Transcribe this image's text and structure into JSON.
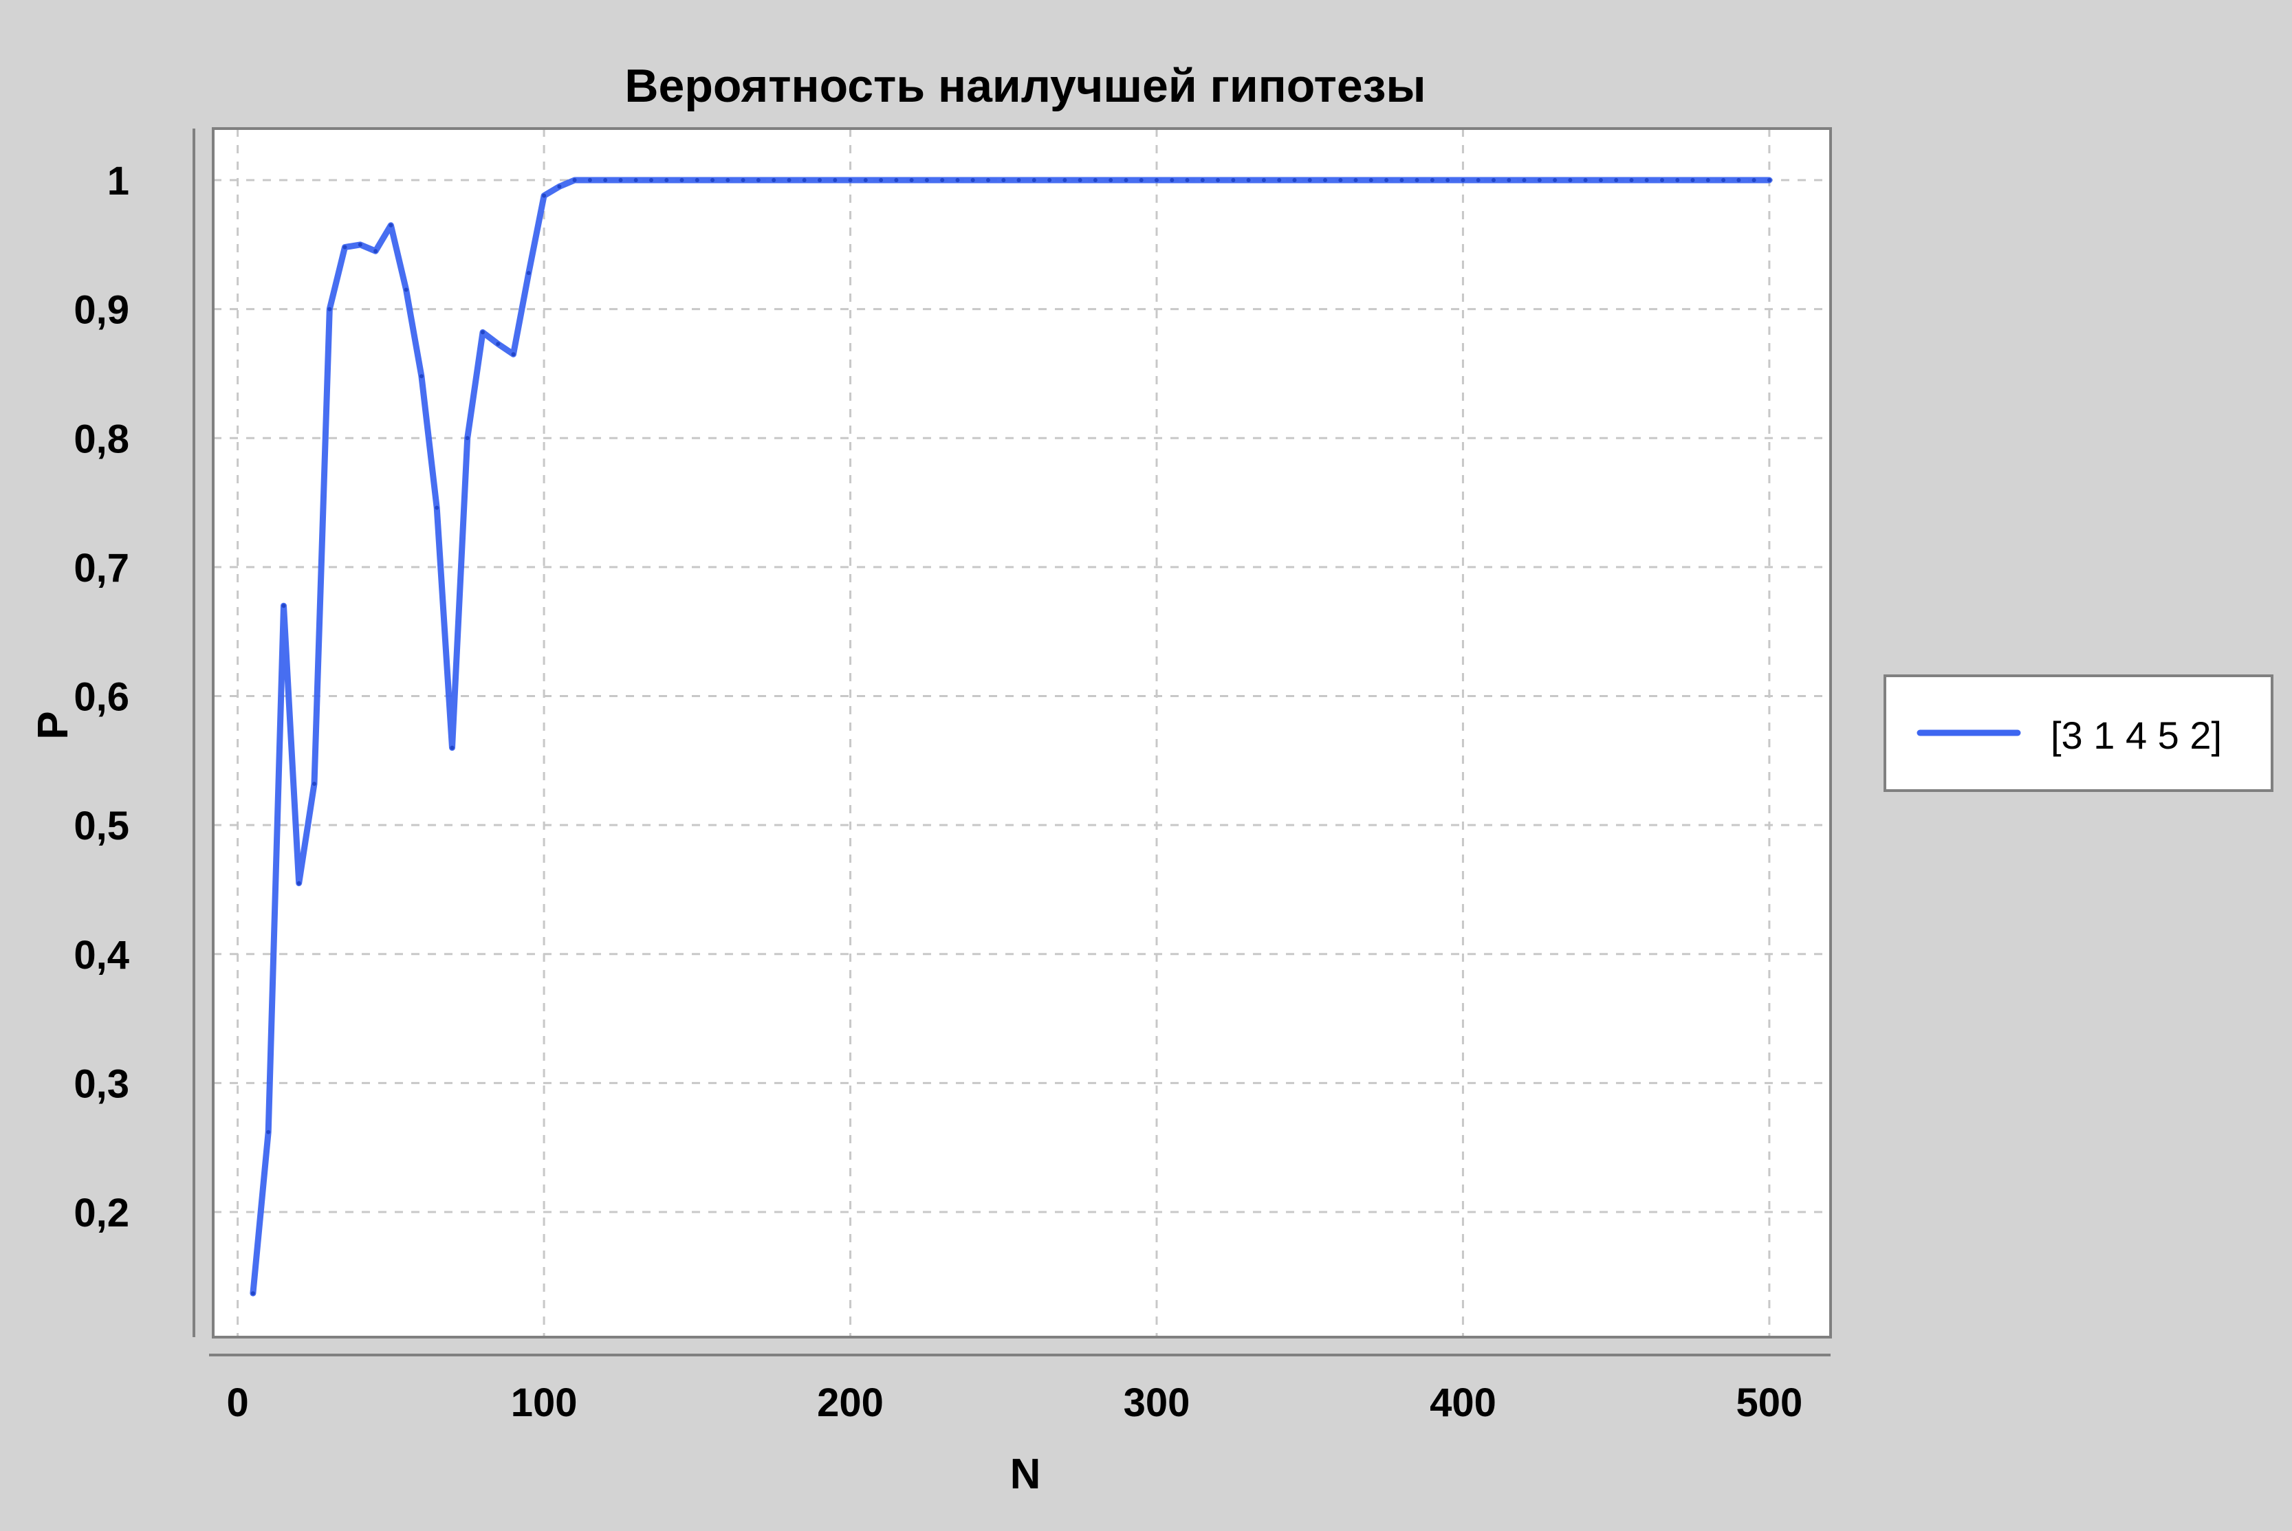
{
  "chart_data": {
    "type": "line",
    "title": "Вероятность наилучшей гипотезы",
    "xlabel": "N",
    "ylabel": "P",
    "xlim": [
      -8,
      520
    ],
    "ylim": [
      0.103,
      1.04
    ],
    "x_ticks": [
      {
        "value": 0,
        "label": "0"
      },
      {
        "value": 100,
        "label": "100"
      },
      {
        "value": 200,
        "label": "200"
      },
      {
        "value": 300,
        "label": "300"
      },
      {
        "value": 400,
        "label": "400"
      },
      {
        "value": 500,
        "label": "500"
      }
    ],
    "y_ticks": [
      {
        "value": 0.2,
        "label": "0,2"
      },
      {
        "value": 0.3,
        "label": "0,3"
      },
      {
        "value": 0.4,
        "label": "0,4"
      },
      {
        "value": 0.5,
        "label": "0,5"
      },
      {
        "value": 0.6,
        "label": "0,6"
      },
      {
        "value": 0.7,
        "label": "0,7"
      },
      {
        "value": 0.8,
        "label": "0,8"
      },
      {
        "value": 0.9,
        "label": "0,9"
      },
      {
        "value": 1.0,
        "label": "1"
      }
    ],
    "grid": true,
    "legend_position": "right",
    "series": [
      {
        "name": "[3 1 4 5 2]",
        "color": "#3d66f0",
        "x": [
          5,
          10,
          15,
          20,
          25,
          30,
          35,
          40,
          45,
          50,
          55,
          60,
          65,
          70,
          75,
          80,
          85,
          90,
          95,
          100,
          105,
          110,
          115,
          120,
          125,
          130,
          135,
          140,
          145,
          150,
          155,
          160,
          165,
          170,
          175,
          180,
          185,
          190,
          195,
          200,
          205,
          210,
          215,
          220,
          225,
          230,
          235,
          240,
          245,
          250,
          255,
          260,
          265,
          270,
          275,
          280,
          285,
          290,
          295,
          300,
          305,
          310,
          315,
          320,
          325,
          330,
          335,
          340,
          345,
          350,
          355,
          360,
          365,
          370,
          375,
          380,
          385,
          390,
          395,
          400,
          405,
          410,
          415,
          420,
          425,
          430,
          435,
          440,
          445,
          450,
          455,
          460,
          465,
          470,
          475,
          480,
          485,
          490,
          495,
          500
        ],
        "y": [
          0.137,
          0.262,
          0.67,
          0.455,
          0.532,
          0.9,
          0.948,
          0.95,
          0.945,
          0.965,
          0.915,
          0.848,
          0.746,
          0.56,
          0.8,
          0.882,
          0.873,
          0.865,
          0.928,
          0.988,
          0.995,
          1.0,
          1.0,
          1.0,
          1.0,
          1.0,
          1.0,
          1.0,
          1.0,
          1.0,
          1.0,
          1.0,
          1.0,
          1.0,
          1.0,
          1.0,
          1.0,
          1.0,
          1.0,
          1.0,
          1.0,
          1.0,
          1.0,
          1.0,
          1.0,
          1.0,
          1.0,
          1.0,
          1.0,
          1.0,
          1.0,
          1.0,
          1.0,
          1.0,
          1.0,
          1.0,
          1.0,
          1.0,
          1.0,
          1.0,
          1.0,
          1.0,
          1.0,
          1.0,
          1.0,
          1.0,
          1.0,
          1.0,
          1.0,
          1.0,
          1.0,
          1.0,
          1.0,
          1.0,
          1.0,
          1.0,
          1.0,
          1.0,
          1.0,
          1.0,
          1.0,
          1.0,
          1.0,
          1.0,
          1.0,
          1.0,
          1.0,
          1.0,
          1.0,
          1.0,
          1.0,
          1.0,
          1.0,
          1.0,
          1.0,
          1.0,
          1.0,
          1.0,
          1.0,
          1.0
        ]
      }
    ]
  }
}
